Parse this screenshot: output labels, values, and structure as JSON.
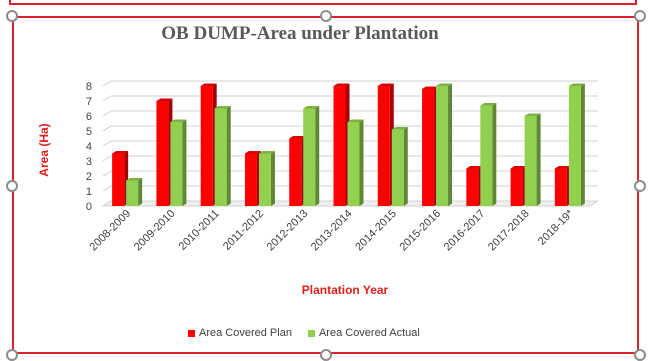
{
  "chart_data": {
    "type": "bar",
    "title": "OB DUMP-Area under Plantation",
    "xlabel": "Plantation Year",
    "ylabel": "Area (Ha)",
    "ylim": [
      0,
      8
    ],
    "yticks": [
      0,
      1,
      2,
      3,
      4,
      5,
      6,
      7,
      8
    ],
    "grid": true,
    "legend_position": "bottom",
    "categories": [
      "2008-2009",
      "2009-2010",
      "2010-2011",
      "2011-2012",
      "2012-2013",
      "2013-2014",
      "2014-2015",
      "2015-2016",
      "2016-2017",
      "2017-2018",
      "2018-19*"
    ],
    "series": [
      {
        "name": "Area Covered Plan",
        "color": "#ff0000",
        "values": [
          3.5,
          7.0,
          8.0,
          3.5,
          4.5,
          8.0,
          8.0,
          7.8,
          2.5,
          2.5,
          2.5
        ]
      },
      {
        "name": "Area Covered Actual",
        "color": "#92d050",
        "values": [
          1.7,
          5.6,
          6.5,
          3.5,
          6.5,
          5.6,
          5.1,
          8.0,
          6.7,
          6.0,
          8.0
        ]
      }
    ]
  }
}
